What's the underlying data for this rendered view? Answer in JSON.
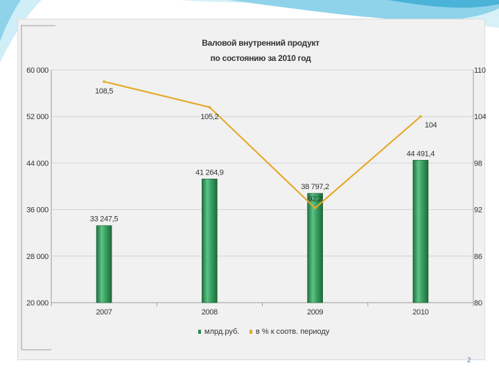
{
  "slide": {
    "page_number": "2",
    "colors": {
      "wave_light": "#cfeef7",
      "wave_mid": "#86cfe8",
      "wave_dark": "#3aa9d1"
    }
  },
  "chart_data": {
    "type": "bar+line",
    "title_line1": "Валовой внутренний продукт",
    "title_line2": "по состоянию за 2010 год",
    "categories": [
      "2007",
      "2008",
      "2009",
      "2010"
    ],
    "series": [
      {
        "name": "млрд.руб.",
        "kind": "bar",
        "axis": "left",
        "color": "#2e8b57",
        "values": [
          33247.5,
          41264.9,
          38797.2,
          44491.4
        ],
        "labels": [
          "33 247,5",
          "41 264,9",
          "38 797,2",
          "44 491,4"
        ]
      },
      {
        "name": "в % к соотв. периоду",
        "kind": "line",
        "axis": "right",
        "color": "#e5a92b",
        "values": [
          108.5,
          105.2,
          92.2,
          104
        ],
        "labels": [
          "108,5",
          "105,2",
          "92,2",
          "104"
        ]
      }
    ],
    "y_left": {
      "min": 20000,
      "max": 60000,
      "ticks": [
        20000,
        28000,
        36000,
        44000,
        52000,
        60000
      ],
      "tick_labels": [
        "20 000",
        "28 000",
        "36 000",
        "44 000",
        "52 000",
        "60 000"
      ]
    },
    "y_right": {
      "min": 80,
      "max": 110,
      "ticks": [
        80,
        86,
        92,
        98,
        104,
        110
      ],
      "tick_labels": [
        "80",
        "86",
        "92",
        "98",
        "104",
        "110"
      ]
    },
    "grid": true,
    "legend_position": "bottom"
  }
}
